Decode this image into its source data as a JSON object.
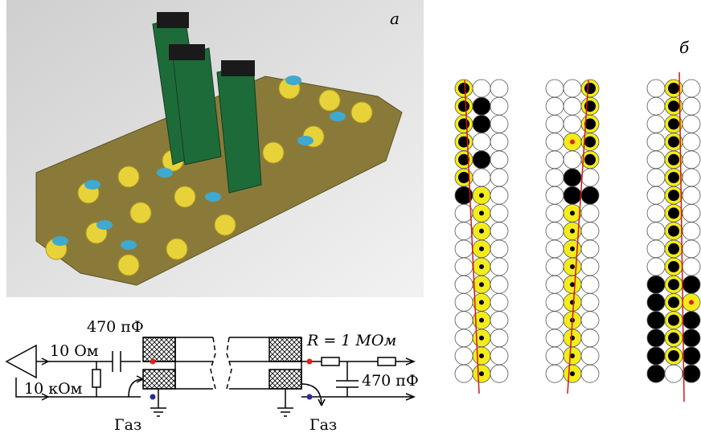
{
  "labels": {
    "panel_a": "а",
    "panel_b": "б"
  },
  "circuit": {
    "capacitor_left": "470 пФ",
    "resistor_series": "10 Ом",
    "resistor_shunt": "10 кОм",
    "gas_left": "Газ",
    "resistor_right": "R = 1 МОм",
    "capacitor_right": "470 пФ",
    "gas_right": "Газ"
  }
}
